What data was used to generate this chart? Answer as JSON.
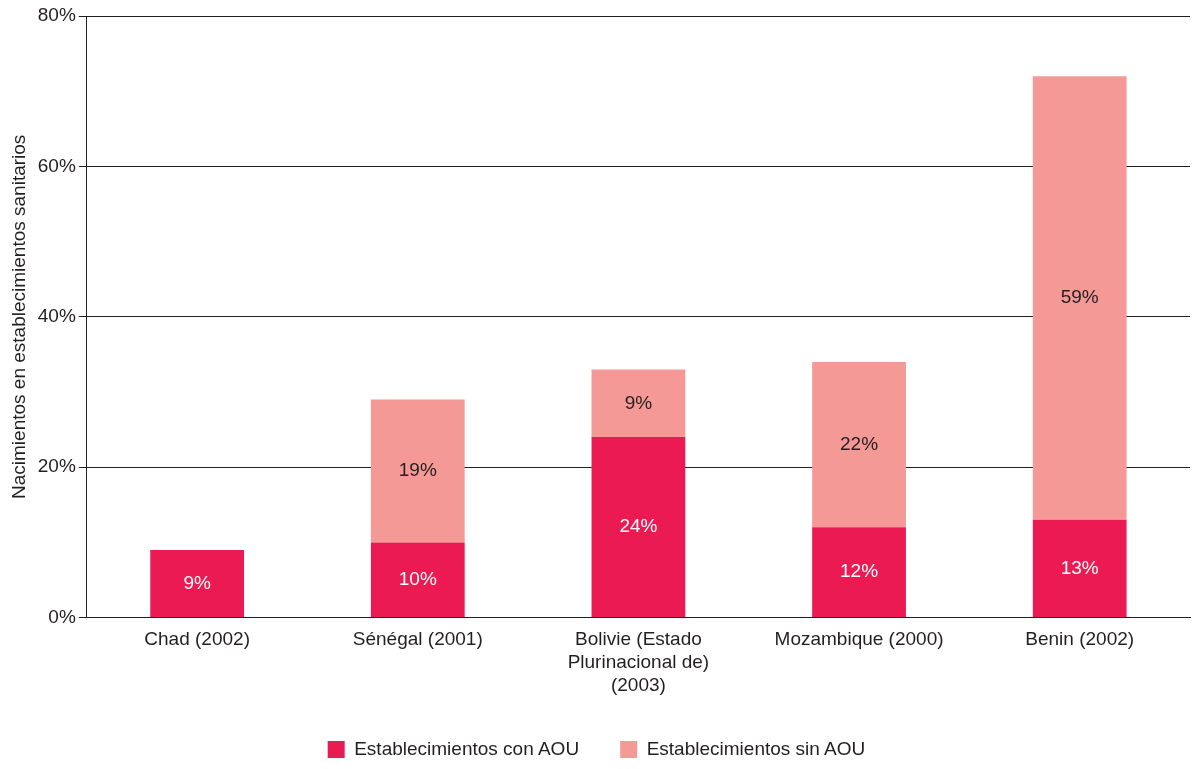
{
  "chart_data": {
    "type": "bar",
    "stacked": true,
    "ylabel": "Nacimientos en establecimientos sanitarios",
    "categories": [
      "Chad (2002)",
      "Sénégal (2001)",
      "Bolivie (Estado Plurinacional de) (2003)",
      "Mozambique (2000)",
      "Benin (2002)"
    ],
    "series": [
      {
        "name": "Establecimientos con AOU",
        "color": "#ec1a52",
        "values": [
          9,
          10,
          24,
          12,
          13
        ],
        "value_labels": [
          "9%",
          "10%",
          "24%",
          "12%",
          "13%"
        ]
      },
      {
        "name": "Establecimientos sin AOU",
        "color": "#f49995",
        "values": [
          null,
          19,
          9,
          22,
          59
        ],
        "value_labels": [
          null,
          "19%",
          "9%",
          "22%",
          "59%"
        ]
      }
    ],
    "ylim": [
      0,
      80
    ],
    "yticks": [
      {
        "value": 0,
        "label": "0%"
      },
      {
        "value": 20,
        "label": "20%"
      },
      {
        "value": 40,
        "label": "40%"
      },
      {
        "value": 60,
        "label": "60%"
      },
      {
        "value": 80,
        "label": "80%"
      }
    ],
    "grid": "y",
    "legend": "bottom"
  }
}
